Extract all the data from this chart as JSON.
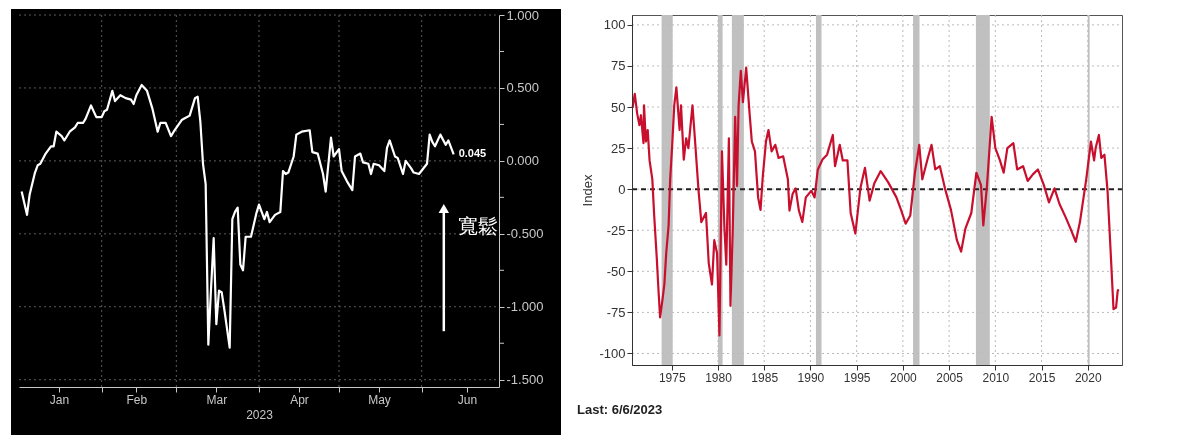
{
  "chart_data": [
    {
      "type": "line",
      "xlabel": "2023",
      "color": "#ffffff",
      "grid": true,
      "line_style": "solid",
      "xlim": [
        "2023-01-01",
        "2023-06-30"
      ],
      "xticks": [
        {
          "value": "2023-02-01",
          "label": null
        },
        {
          "value": "2023-03-01",
          "label": null
        },
        {
          "value": "2023-04-01",
          "label": null
        },
        {
          "value": "2023-05-01",
          "label": null
        },
        {
          "value": "2023-06-01",
          "label": null
        },
        {
          "value": "2023-01-16",
          "label": "Jan"
        },
        {
          "value": "2023-02-14",
          "label": "Feb"
        },
        {
          "value": "2023-03-16",
          "label": "Mar"
        },
        {
          "value": "2023-04-16",
          "label": "Apr"
        },
        {
          "value": "2023-05-16",
          "label": "May"
        },
        {
          "value": "2023-06-18",
          "label": "Jun"
        }
      ],
      "ylim": [
        -1.55,
        1.0
      ],
      "yticks": [
        {
          "value": 1,
          "label": "1.000"
        },
        {
          "value": 0.75,
          "label": null
        },
        {
          "value": 0.5,
          "label": "0.500"
        },
        {
          "value": 0.25,
          "label": null
        },
        {
          "value": 0,
          "label": "0.000"
        },
        {
          "value": -0.25,
          "label": null
        },
        {
          "value": -0.5,
          "label": "-0.500"
        },
        {
          "value": -0.75,
          "label": null
        },
        {
          "value": -1,
          "label": "-1.000"
        },
        {
          "value": -1.25,
          "label": null
        },
        {
          "value": -1.5,
          "label": "-1.500"
        }
      ],
      "x": [
        "2023-01-02",
        "2023-01-04",
        "2023-01-05",
        "2023-01-07",
        "2023-01-08",
        "2023-01-09",
        "2023-01-11",
        "2023-01-13",
        "2023-01-14",
        "2023-01-15",
        "2023-01-17",
        "2023-01-18",
        "2023-01-20",
        "2023-01-22",
        "2023-01-23",
        "2023-01-25",
        "2023-01-26",
        "2023-01-28",
        "2023-01-30",
        "2023-02-01",
        "2023-02-02",
        "2023-02-03",
        "2023-02-05",
        "2023-02-06",
        "2023-02-08",
        "2023-02-10",
        "2023-02-12",
        "2023-02-13",
        "2023-02-14",
        "2023-02-16",
        "2023-02-18",
        "2023-02-20",
        "2023-02-22",
        "2023-02-23",
        "2023-02-25",
        "2023-02-27",
        "2023-02-28",
        "2023-03-03",
        "2023-03-04",
        "2023-03-06",
        "2023-03-08",
        "2023-03-09",
        "2023-03-10",
        "2023-03-11",
        "2023-03-12",
        "2023-03-13",
        "2023-03-14",
        "2023-03-15",
        "2023-03-16",
        "2023-03-17",
        "2023-03-18",
        "2023-03-19",
        "2023-03-21",
        "2023-03-22",
        "2023-03-23",
        "2023-03-24",
        "2023-03-25",
        "2023-03-26",
        "2023-03-27",
        "2023-03-29",
        "2023-03-31",
        "2023-04-01",
        "2023-04-03",
        "2023-04-04",
        "2023-04-05",
        "2023-04-07",
        "2023-04-09",
        "2023-04-10",
        "2023-04-11",
        "2023-04-12",
        "2023-04-14",
        "2023-04-15",
        "2023-04-17",
        "2023-04-20",
        "2023-04-21",
        "2023-04-23",
        "2023-04-25",
        "2023-04-26",
        "2023-04-28",
        "2023-04-29",
        "2023-05-01",
        "2023-05-02",
        "2023-05-04",
        "2023-05-06",
        "2023-05-07",
        "2023-05-09",
        "2023-05-10",
        "2023-05-12",
        "2023-05-13",
        "2023-05-14",
        "2023-05-16",
        "2023-05-18",
        "2023-05-19",
        "2023-05-20",
        "2023-05-22",
        "2023-05-23",
        "2023-05-25",
        "2023-05-26",
        "2023-05-28",
        "2023-05-29",
        "2023-05-31",
        "2023-06-03",
        "2023-06-04",
        "2023-06-05",
        "2023-06-06",
        "2023-06-08",
        "2023-06-10",
        "2023-06-11",
        "2023-06-13"
      ],
      "values": [
        -0.21,
        -0.37,
        -0.23,
        -0.08,
        -0.03,
        -0.02,
        0.05,
        0.1,
        0.1,
        0.2,
        0.17,
        0.14,
        0.2,
        0.23,
        0.26,
        0.26,
        0.29,
        0.38,
        0.3,
        0.3,
        0.34,
        0.35,
        0.48,
        0.41,
        0.45,
        0.43,
        0.42,
        0.39,
        0.45,
        0.52,
        0.48,
        0.36,
        0.2,
        0.26,
        0.26,
        0.17,
        0.2,
        0.28,
        0.29,
        0.31,
        0.43,
        0.44,
        0.27,
        -0.02,
        -0.16,
        -1.26,
        -0.88,
        -0.53,
        -1.12,
        -0.89,
        -0.9,
        -1.02,
        -1.28,
        -0.4,
        -0.35,
        -0.32,
        -0.71,
        -0.75,
        -0.52,
        -0.52,
        -0.36,
        -0.3,
        -0.4,
        -0.35,
        -0.42,
        -0.37,
        -0.35,
        -0.07,
        -0.09,
        -0.08,
        0.03,
        0.18,
        0.2,
        0.21,
        0.06,
        0.05,
        -0.09,
        -0.21,
        0.16,
        0.03,
        0.08,
        -0.07,
        -0.14,
        -0.2,
        0.03,
        0.05,
        -0.01,
        -0.02,
        -0.09,
        -0.02,
        -0.03,
        -0.07,
        0.09,
        0.14,
        0.03,
        0.02,
        -0.09,
        0.0,
        -0.05,
        -0.08,
        -0.09,
        -0.02,
        0.18,
        0.13,
        0.1,
        0.18,
        0.11,
        0.14,
        0.045
      ],
      "annotations": [
        "寬鬆",
        {
          "text": "0.045",
          "x": "2023-06-13",
          "y": 0.045
        }
      ]
    },
    {
      "type": "line",
      "ylabel": "Index",
      "color": "#c8102e",
      "grid": true,
      "line_style": "solid",
      "xlim": [
        1970.7,
        2023.7
      ],
      "xticks": [
        1975,
        1980,
        1985,
        1990,
        1995,
        2000,
        2005,
        2010,
        2015,
        2020
      ],
      "ylim": [
        -107,
        106
      ],
      "yticks": [
        -100,
        -75,
        -50,
        -25,
        0,
        25,
        50,
        75,
        100
      ],
      "ref_lines": [
        {
          "axis": "y",
          "value": 0,
          "color": "#222222",
          "line_style": "dashed"
        }
      ],
      "bands": [
        {
          "axis": "x",
          "from": 1973.9,
          "to": 1975.1,
          "color": "#c0c0c0"
        },
        {
          "axis": "x",
          "from": 1980.0,
          "to": 1980.5,
          "color": "#c0c0c0"
        },
        {
          "axis": "x",
          "from": 1981.5,
          "to": 1982.8,
          "color": "#c0c0c0"
        },
        {
          "axis": "x",
          "from": 1990.6,
          "to": 1991.2,
          "color": "#c0c0c0"
        },
        {
          "axis": "x",
          "from": 2001.1,
          "to": 2001.8,
          "color": "#c0c0c0"
        },
        {
          "axis": "x",
          "from": 2007.9,
          "to": 2009.4,
          "color": "#c0c0c0"
        },
        {
          "axis": "x",
          "from": 2020.0,
          "to": 2020.2,
          "color": "#c0c0c0"
        }
      ],
      "x": [
        1970.76,
        1971.0,
        1971.26,
        1971.5,
        1971.67,
        1971.94,
        1972.0,
        1972.2,
        1972.4,
        1972.6,
        1972.9,
        1973.1,
        1973.37,
        1973.57,
        1973.74,
        1974.0,
        1974.2,
        1974.4,
        1974.66,
        1974.83,
        1975.07,
        1975.27,
        1975.5,
        1975.85,
        1976.0,
        1976.3,
        1976.56,
        1976.8,
        1977.24,
        1977.5,
        1977.9,
        1978.2,
        1978.7,
        1979.0,
        1979.35,
        1979.6,
        1979.9,
        1980.16,
        1980.43,
        1980.7,
        1980.9,
        1981.18,
        1981.35,
        1981.6,
        1981.86,
        1982.06,
        1982.23,
        1982.47,
        1982.7,
        1983.05,
        1983.42,
        1983.66,
        1984.0,
        1984.34,
        1984.6,
        1984.85,
        1985.19,
        1985.46,
        1985.8,
        1986.2,
        1986.55,
        1987.05,
        1987.56,
        1987.73,
        1988.07,
        1988.4,
        1988.75,
        1989.12,
        1989.5,
        1990.1,
        1990.45,
        1990.8,
        1991.3,
        1991.8,
        1992.42,
        1992.66,
        1993.17,
        1993.5,
        1994.0,
        1994.35,
        1994.86,
        1995.4,
        1995.9,
        1996.4,
        1996.9,
        1997.6,
        1998.4,
        1999.3,
        1999.8,
        2000.3,
        2000.8,
        2001.3,
        2001.77,
        2002.1,
        2002.7,
        2003.1,
        2003.5,
        2004.0,
        2004.55,
        2005.2,
        2005.84,
        2006.3,
        2006.76,
        2007.4,
        2007.95,
        2008.45,
        2008.7,
        2009.1,
        2009.6,
        2010.0,
        2010.5,
        2010.9,
        2011.3,
        2011.95,
        2012.36,
        2013.0,
        2013.5,
        2014.06,
        2014.6,
        2015.25,
        2015.8,
        2016.4,
        2016.94,
        2017.6,
        2018.13,
        2018.7,
        2019.15,
        2019.83,
        2020.34,
        2020.68,
        2020.85,
        2021.2,
        2021.46,
        2021.8,
        2022.14,
        2022.48,
        2022.78,
        2023.06,
        2023.23,
        2023.33
      ],
      "values": [
        49.5,
        58,
        46,
        39,
        45,
        28,
        51,
        29,
        36,
        17.5,
        6,
        -16,
        -41,
        -62,
        -78,
        -67,
        -58,
        -39,
        -22,
        6,
        29,
        51,
        62,
        36,
        51,
        18,
        31,
        25,
        51,
        31,
        -1,
        -20,
        -14.5,
        -45,
        -58,
        -31,
        -39,
        -89,
        23,
        -24,
        -46,
        31,
        -71,
        -24,
        44,
        2,
        51,
        72,
        53,
        74,
        46,
        29,
        23,
        -5,
        -12.6,
        8,
        29,
        36,
        23,
        27,
        19,
        20,
        6,
        -13,
        -3,
        0.5,
        -13,
        -20,
        -5,
        -1,
        -5,
        12,
        18,
        21,
        33,
        14,
        27,
        17.5,
        17.5,
        -14.5,
        -27,
        0.5,
        13,
        -7,
        3.4,
        11,
        4.3,
        -5,
        -12.6,
        -21,
        -16,
        10,
        27,
        6,
        19,
        27,
        12,
        14,
        0.5,
        -12.6,
        -31,
        -38,
        -24,
        -14.5,
        10,
        2.5,
        -22,
        2.5,
        44,
        25,
        17.5,
        10,
        25,
        28,
        12,
        14,
        5,
        9,
        12,
        2.5,
        -8,
        0.5,
        -9,
        -17,
        -24,
        -32,
        -20,
        6,
        29,
        17.5,
        25,
        33,
        19,
        21,
        -1.3,
        -39,
        -73,
        -72,
        -62,
        -61
      ],
      "annotations": [
        "Last: 6/6/2023"
      ]
    }
  ]
}
